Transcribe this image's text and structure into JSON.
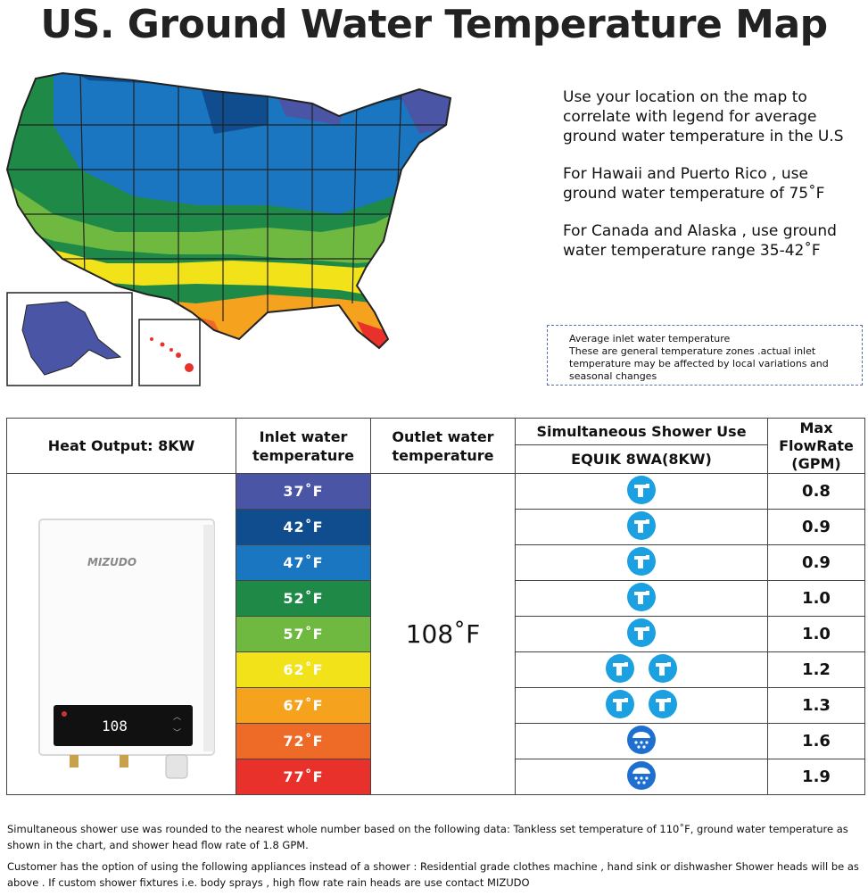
{
  "title": "US. Ground Water Temperature Map",
  "intro": {
    "p1": "Use your location on the map to correlate with legend for average ground water temperature in the U.S",
    "p2": "For Hawaii and Puerto Rico , use ground water temperature of 75˚F",
    "p3": "For Canada and Alaska , use ground water temperature range 35-42˚F"
  },
  "legend_note": {
    "line1": "Average inlet water temperature",
    "line2": "These are general temperature zones .actual inlet temperature may be affected by local variations and seasonal changes"
  },
  "table": {
    "heat_output": "Heat Output: 8KW",
    "col_inlet": "Inlet water temperature",
    "col_outlet": "Outlet water temperature",
    "col_simultaneous": "Simultaneous Shower Use",
    "col_model": "EQUIK 8WA(8KW)",
    "col_max_flow": "Max FlowRate (GPM)",
    "outlet_temp": "108˚F",
    "rows": [
      {
        "inlet": "37˚F",
        "color": "#4a55a6",
        "flow": "0.8",
        "icons": [
          "faucet"
        ]
      },
      {
        "inlet": "42˚F",
        "color": "#0f4d8f",
        "flow": "0.9",
        "icons": [
          "faucet"
        ]
      },
      {
        "inlet": "47˚F",
        "color": "#1a76c0",
        "flow": "0.9",
        "icons": [
          "faucet"
        ]
      },
      {
        "inlet": "52˚F",
        "color": "#1f8a48",
        "flow": "1.0",
        "icons": [
          "faucet"
        ]
      },
      {
        "inlet": "57˚F",
        "color": "#6fb940",
        "flow": "1.0",
        "icons": [
          "faucet"
        ]
      },
      {
        "inlet": "62˚F",
        "color": "#f2e21a",
        "flow": "1.2",
        "icons": [
          "faucet",
          "faucet"
        ]
      },
      {
        "inlet": "67˚F",
        "color": "#f5a21f",
        "flow": "1.3",
        "icons": [
          "faucet",
          "faucet"
        ]
      },
      {
        "inlet": "72˚F",
        "color": "#ee6a27",
        "flow": "1.6",
        "icons": [
          "shower"
        ]
      },
      {
        "inlet": "77˚F",
        "color": "#e8312a",
        "flow": "1.9",
        "icons": [
          "shower"
        ]
      }
    ]
  },
  "heater": {
    "brand": "MIZUDO",
    "display": "108"
  },
  "footer": {
    "p1": "Simultaneous shower use was rounded to the nearest whole number based on the following data: Tankless set temperature of 110˚F, ground water temperature as shown in the chart, and shower head flow rate of 1.8 GPM.",
    "p2": "Customer has the option of using the following appliances instead of a shower : Residential grade clothes machine , hand sink or dishwasher Shower heads will be as above . If custom shower fixtures i.e. body sprays , high flow rate rain heads are use contact MIZUDO"
  }
}
